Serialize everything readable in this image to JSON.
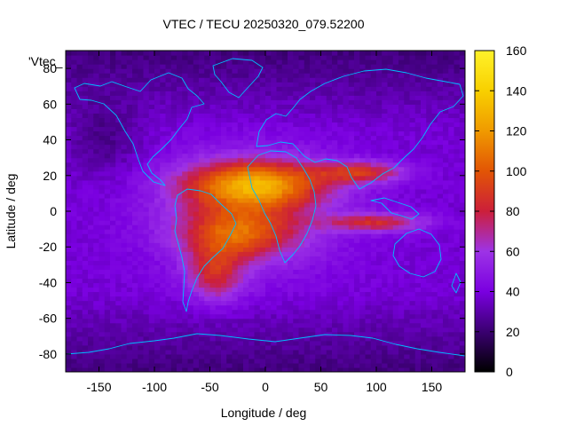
{
  "chart_data": {
    "type": "heatmap",
    "title": "VTEC / TECU 20250320_079.52200",
    "xlabel": "Longitude / deg",
    "ylabel": "Latitude / deg",
    "series_label": "'Vtec_",
    "xlim": [
      -180,
      180
    ],
    "ylim": [
      -90,
      90
    ],
    "xticks": [
      -150,
      -100,
      -50,
      0,
      50,
      100,
      150
    ],
    "yticks": [
      -80,
      -60,
      -40,
      -20,
      0,
      20,
      40,
      60,
      80
    ],
    "colorbar": {
      "range": [
        0,
        160
      ],
      "ticks": [
        0,
        20,
        40,
        60,
        80,
        100,
        120,
        140,
        160
      ],
      "palette_stops": [
        "#000000",
        "#3a0070",
        "#7a00e0",
        "#9d33e6",
        "#cc1f3a",
        "#e25505",
        "#f09a00",
        "#f8d000",
        "#fff22a"
      ]
    },
    "field": {
      "background_value": 38,
      "high_lat_value": 22,
      "features": [
        {
          "name": "equatorial-anomaly-north",
          "lon": -10,
          "lat": 15,
          "peak": 75,
          "lon_width": 60,
          "lat_width": 13
        },
        {
          "name": "equatorial-anomaly-south",
          "lon": -25,
          "lat": -12,
          "peak": 50,
          "lon_width": 50,
          "lat_width": 14
        },
        {
          "name": "south-america-crest",
          "lon": -45,
          "lat": -35,
          "peak": 40,
          "lon_width": 25,
          "lat_width": 15
        },
        {
          "name": "asia-tongue-north",
          "lon": 85,
          "lat": 22,
          "peak": 45,
          "lon_width": 40,
          "lat_width": 6
        },
        {
          "name": "asia-tongue-south",
          "lon": 100,
          "lat": -6,
          "peak": 42,
          "lon_width": 45,
          "lat_width": 5
        },
        {
          "name": "wide-dayside-bulge",
          "lon": -15,
          "lat": 0,
          "peak": 22,
          "lon_width": 90,
          "lat_width": 35
        }
      ]
    },
    "coastline_color": "#00bfff"
  }
}
